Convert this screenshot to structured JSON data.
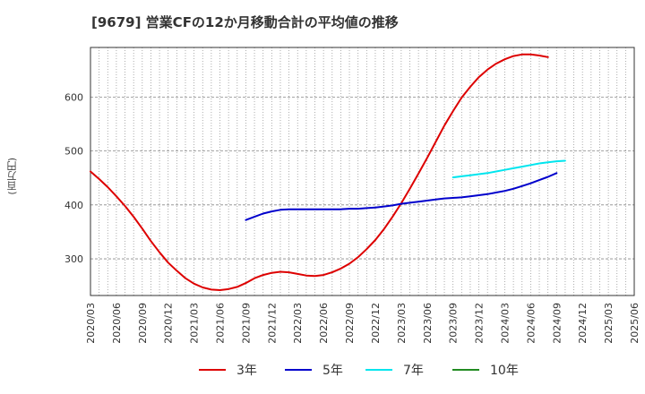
{
  "chart_data": {
    "type": "line",
    "title": "[9679]  営業CFの12か月移動合計の平均値の推移",
    "ylabel": "(百万円)",
    "xlabel": "",
    "ylim": [
      232,
      692
    ],
    "yticks": [
      300,
      400,
      500,
      600
    ],
    "xticks": [
      "2020/03",
      "2020/06",
      "2020/09",
      "2020/12",
      "2021/03",
      "2021/06",
      "2021/09",
      "2021/12",
      "2022/03",
      "2022/06",
      "2022/09",
      "2022/12",
      "2023/03",
      "2023/06",
      "2023/09",
      "2023/12",
      "2024/03",
      "2024/06",
      "2024/09",
      "2024/12",
      "2025/03",
      "2025/06"
    ],
    "grid": true,
    "legend_position": "bottom",
    "series": [
      {
        "name": "3年",
        "color": "#dd0000",
        "points": [
          [
            "2020/03",
            462
          ],
          [
            "2020/04",
            448
          ],
          [
            "2020/05",
            433
          ],
          [
            "2020/06",
            416
          ],
          [
            "2020/07",
            398
          ],
          [
            "2020/08",
            378
          ],
          [
            "2020/09",
            356
          ],
          [
            "2020/10",
            333
          ],
          [
            "2020/11",
            312
          ],
          [
            "2020/12",
            293
          ],
          [
            "2021/01",
            278
          ],
          [
            "2021/02",
            264
          ],
          [
            "2021/03",
            254
          ],
          [
            "2021/04",
            247
          ],
          [
            "2021/05",
            243
          ],
          [
            "2021/06",
            242
          ],
          [
            "2021/07",
            244
          ],
          [
            "2021/08",
            248
          ],
          [
            "2021/09",
            255
          ],
          [
            "2021/10",
            264
          ],
          [
            "2021/11",
            270
          ],
          [
            "2021/12",
            274
          ],
          [
            "2022/01",
            276
          ],
          [
            "2022/02",
            275
          ],
          [
            "2022/03",
            272
          ],
          [
            "2022/04",
            269
          ],
          [
            "2022/05",
            268
          ],
          [
            "2022/06",
            270
          ],
          [
            "2022/07",
            275
          ],
          [
            "2022/08",
            282
          ],
          [
            "2022/09",
            291
          ],
          [
            "2022/10",
            303
          ],
          [
            "2022/11",
            318
          ],
          [
            "2022/12",
            335
          ],
          [
            "2023/01",
            355
          ],
          [
            "2023/02",
            378
          ],
          [
            "2023/03",
            403
          ],
          [
            "2023/04",
            430
          ],
          [
            "2023/05",
            458
          ],
          [
            "2023/06",
            487
          ],
          [
            "2023/07",
            517
          ],
          [
            "2023/08",
            547
          ],
          [
            "2023/09",
            574
          ],
          [
            "2023/10",
            599
          ],
          [
            "2023/11",
            619
          ],
          [
            "2023/12",
            637
          ],
          [
            "2024/01",
            651
          ],
          [
            "2024/02",
            662
          ],
          [
            "2024/03",
            670
          ],
          [
            "2024/04",
            676
          ],
          [
            "2024/05",
            679
          ],
          [
            "2024/06",
            679
          ],
          [
            "2024/07",
            677
          ],
          [
            "2024/08",
            674
          ]
        ]
      },
      {
        "name": "5年",
        "color": "#0000cc",
        "points": [
          [
            "2021/09",
            372
          ],
          [
            "2021/10",
            378
          ],
          [
            "2021/11",
            384
          ],
          [
            "2021/12",
            388
          ],
          [
            "2022/01",
            391
          ],
          [
            "2022/02",
            392
          ],
          [
            "2022/03",
            392
          ],
          [
            "2022/04",
            392
          ],
          [
            "2022/05",
            392
          ],
          [
            "2022/06",
            392
          ],
          [
            "2022/07",
            392
          ],
          [
            "2022/08",
            392
          ],
          [
            "2022/09",
            393
          ],
          [
            "2022/10",
            393
          ],
          [
            "2022/11",
            394
          ],
          [
            "2022/12",
            395
          ],
          [
            "2023/01",
            397
          ],
          [
            "2023/02",
            399
          ],
          [
            "2023/03",
            402
          ],
          [
            "2023/04",
            404
          ],
          [
            "2023/05",
            406
          ],
          [
            "2023/06",
            408
          ],
          [
            "2023/07",
            410
          ],
          [
            "2023/08",
            412
          ],
          [
            "2023/09",
            413
          ],
          [
            "2023/10",
            414
          ],
          [
            "2023/11",
            416
          ],
          [
            "2023/12",
            418
          ],
          [
            "2024/01",
            420
          ],
          [
            "2024/02",
            423
          ],
          [
            "2024/03",
            426
          ],
          [
            "2024/04",
            430
          ],
          [
            "2024/05",
            435
          ],
          [
            "2024/06",
            440
          ],
          [
            "2024/07",
            446
          ],
          [
            "2024/08",
            452
          ],
          [
            "2024/09",
            459
          ]
        ]
      },
      {
        "name": "7年",
        "color": "#00e5ee",
        "points": [
          [
            "2023/09",
            451
          ],
          [
            "2023/10",
            453
          ],
          [
            "2023/11",
            455
          ],
          [
            "2023/12",
            457
          ],
          [
            "2024/01",
            459
          ],
          [
            "2024/02",
            462
          ],
          [
            "2024/03",
            465
          ],
          [
            "2024/04",
            468
          ],
          [
            "2024/05",
            471
          ],
          [
            "2024/06",
            474
          ],
          [
            "2024/07",
            477
          ],
          [
            "2024/08",
            479
          ],
          [
            "2024/09",
            481
          ],
          [
            "2024/10",
            482
          ]
        ]
      },
      {
        "name": "10年",
        "color": "#228b22",
        "points": []
      }
    ]
  }
}
